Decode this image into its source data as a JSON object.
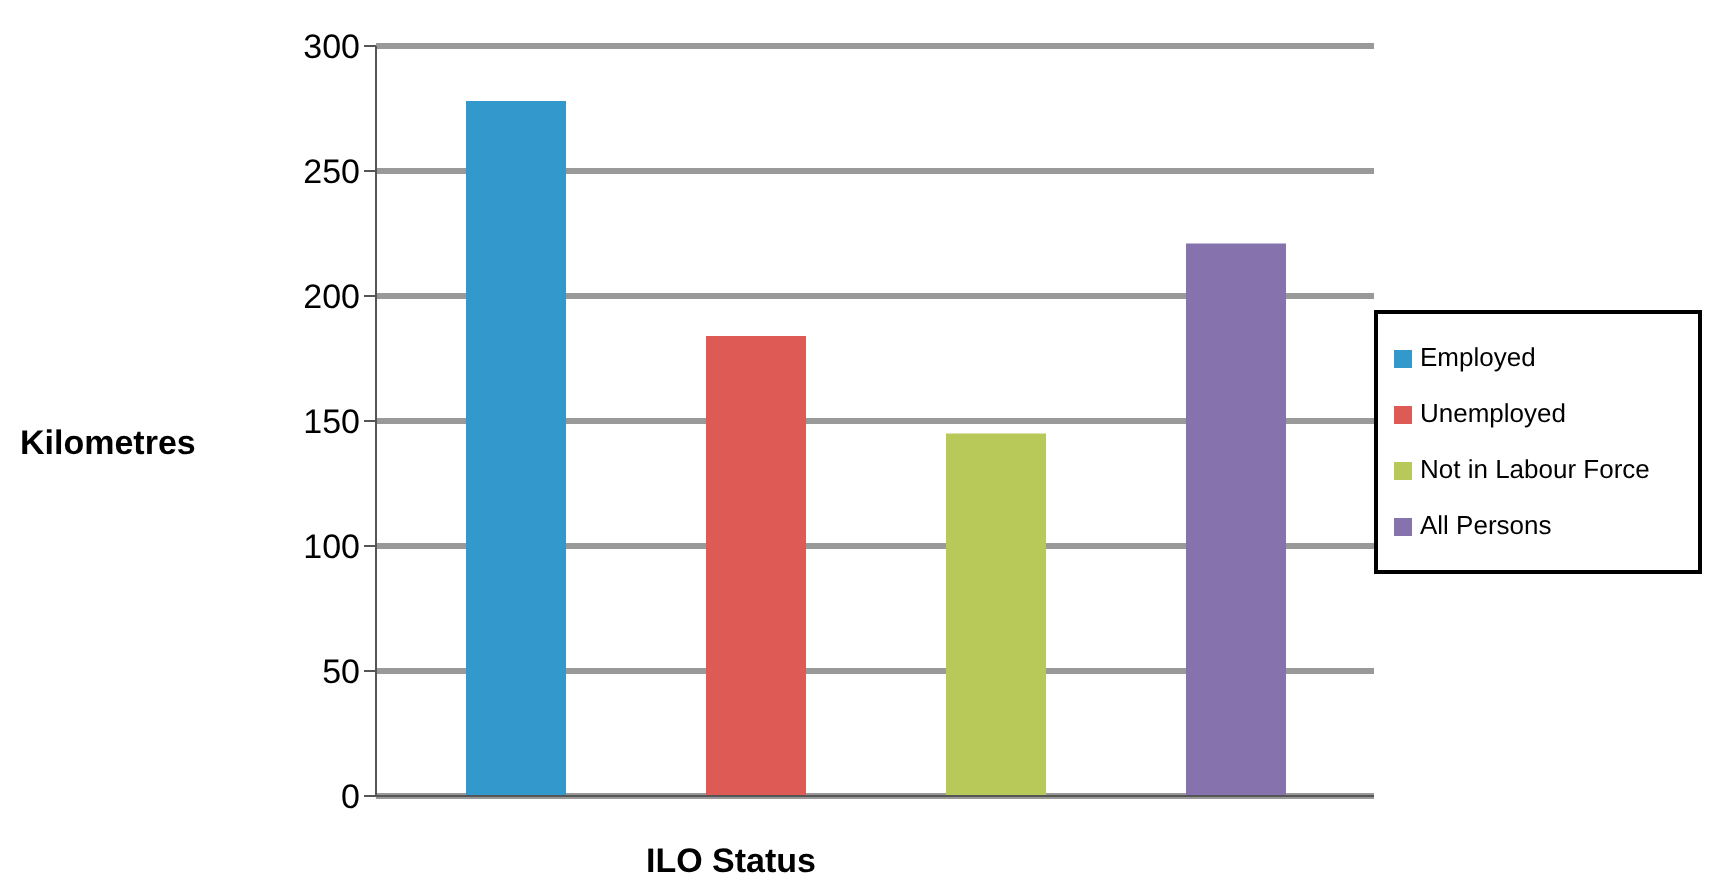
{
  "chart_data": {
    "type": "bar",
    "xlabel": "ILO Status",
    "ylabel": "Kilometres",
    "categories": [
      null
    ],
    "series": [
      {
        "name": "Employed",
        "color": "#3399cc",
        "values": [
          278
        ]
      },
      {
        "name": "Unemployed",
        "color": "#dd5a55",
        "values": [
          184
        ]
      },
      {
        "name": "Not in Labour Force",
        "color": "#b8c95a",
        "values": [
          145
        ]
      },
      {
        "name": "All Persons",
        "color": "#8673ae",
        "values": [
          221
        ]
      }
    ],
    "ylim": [
      0,
      300
    ],
    "yticks": [
      0,
      50,
      100,
      150,
      200,
      250,
      300
    ],
    "grid": "y",
    "legend": "right"
  }
}
